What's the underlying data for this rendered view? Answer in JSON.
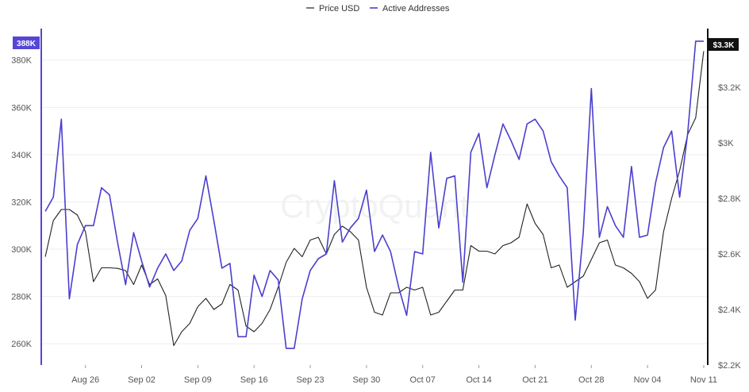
{
  "watermark": "CryptoQuant",
  "colors": {
    "price": "#222222",
    "addresses": "#4b3fce",
    "left_badge_bg": "#5546d6",
    "right_badge_bg": "#111111",
    "grid": "#eeeeee"
  },
  "chart_data": {
    "type": "line",
    "title": "",
    "legend": {
      "placement": "top-center",
      "entries": [
        "Price USD",
        "Active Addresses"
      ]
    },
    "left_axis": {
      "series": "Active Addresses",
      "range": [
        251000,
        392000
      ],
      "ticks": [
        260000,
        280000,
        300000,
        320000,
        340000,
        360000,
        380000
      ],
      "tick_labels": [
        "260K",
        "280K",
        "300K",
        "320K",
        "340K",
        "360K",
        "380K"
      ],
      "current_label": "388K"
    },
    "right_axis": {
      "series": "Price USD",
      "range": [
        2200,
        3400
      ],
      "ticks": [
        2200,
        2400,
        2600,
        2800,
        3000,
        3200
      ],
      "tick_labels": [
        "$2.2K",
        "$2.4K",
        "$2.6K",
        "$2.8K",
        "$3K",
        "$3.2K"
      ],
      "current_label": "$3.3K"
    },
    "x_axis": {
      "tick_labels": [
        "Aug 26",
        "Sep 02",
        "Sep 09",
        "Sep 16",
        "Sep 23",
        "Sep 30",
        "Oct 07",
        "Oct 14",
        "Oct 21",
        "Oct 28",
        "Nov 04",
        "Nov 11"
      ],
      "tick_days": [
        5,
        12,
        19,
        26,
        33,
        40,
        47,
        54,
        61,
        68,
        75,
        82
      ],
      "day_range": [
        -0.5,
        82.5
      ]
    },
    "x": [
      0,
      1,
      2,
      3,
      4,
      5,
      6,
      7,
      8,
      9,
      10,
      11,
      12,
      13,
      14,
      15,
      16,
      17,
      18,
      19,
      20,
      21,
      22,
      23,
      24,
      25,
      26,
      27,
      28,
      29,
      30,
      31,
      32,
      33,
      34,
      35,
      36,
      37,
      38,
      39,
      40,
      41,
      42,
      43,
      44,
      45,
      46,
      47,
      48,
      49,
      50,
      51,
      52,
      53,
      54,
      55,
      56,
      57,
      58,
      59,
      60,
      61,
      62,
      63,
      64,
      65,
      66,
      67,
      68,
      69,
      70,
      71,
      72,
      73,
      74,
      75,
      76,
      77,
      78,
      79,
      80,
      81,
      82
    ],
    "series": [
      {
        "name": "Active Addresses",
        "axis": "left",
        "values": [
          316000,
          322000,
          355000,
          279000,
          302000,
          310000,
          310000,
          326000,
          323000,
          303000,
          285000,
          307000,
          295000,
          284000,
          292000,
          298000,
          291000,
          295000,
          308000,
          313000,
          331000,
          312000,
          292000,
          294000,
          263000,
          263000,
          289000,
          280000,
          291000,
          287000,
          258000,
          258000,
          279000,
          291000,
          296000,
          298000,
          329000,
          303000,
          309000,
          313000,
          325000,
          299000,
          306000,
          299000,
          284000,
          272000,
          299000,
          298000,
          341000,
          309000,
          330000,
          331000,
          286000,
          341000,
          349000,
          326000,
          340000,
          353000,
          346000,
          338000,
          353000,
          355000,
          350000,
          337000,
          331000,
          326000,
          270000,
          307000,
          368000,
          305000,
          318000,
          310000,
          305000,
          335000,
          305000,
          306000,
          328000,
          343000,
          350000,
          322000,
          349000,
          388000,
          388000
        ]
      },
      {
        "name": "Price USD",
        "axis": "right",
        "values": [
          2590,
          2720,
          2760,
          2760,
          2740,
          2680,
          2500,
          2550,
          2550,
          2548,
          2540,
          2490,
          2560,
          2490,
          2510,
          2450,
          2270,
          2320,
          2350,
          2410,
          2440,
          2400,
          2420,
          2490,
          2470,
          2340,
          2320,
          2350,
          2400,
          2480,
          2570,
          2620,
          2590,
          2650,
          2660,
          2600,
          2670,
          2700,
          2680,
          2650,
          2480,
          2390,
          2380,
          2460,
          2460,
          2480,
          2470,
          2480,
          2380,
          2390,
          2430,
          2470,
          2470,
          2630,
          2610,
          2610,
          2600,
          2630,
          2640,
          2660,
          2780,
          2710,
          2670,
          2550,
          2560,
          2480,
          2500,
          2520,
          2580,
          2640,
          2650,
          2560,
          2550,
          2530,
          2500,
          2440,
          2470,
          2680,
          2800,
          2900,
          3030,
          3090,
          3330
        ]
      }
    ]
  }
}
